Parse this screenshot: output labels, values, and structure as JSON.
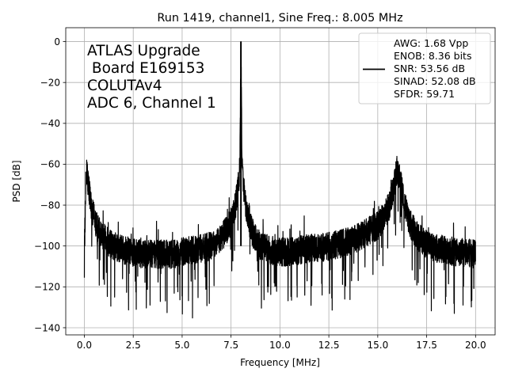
{
  "chart_data": {
    "type": "line",
    "title": "Run 1419, channel1, Sine Freq.: 8.005 MHz",
    "xlabel": "Frequency [MHz]",
    "ylabel": "PSD [dB]",
    "xlim": [
      -0.95,
      21.0
    ],
    "ylim": [
      -143.5,
      6.8
    ],
    "xticks": [
      0.0,
      2.5,
      5.0,
      7.5,
      10.0,
      12.5,
      15.0,
      17.5,
      20.0
    ],
    "xtick_labels": [
      "0.0",
      "2.5",
      "5.0",
      "7.5",
      "10.0",
      "12.5",
      "15.0",
      "17.5",
      "20.0"
    ],
    "yticks": [
      0,
      -20,
      -40,
      -60,
      -80,
      -100,
      -120,
      -140
    ],
    "ytick_labels": [
      "0",
      "−20",
      "−40",
      "−60",
      "−80",
      "−100",
      "−120",
      "−140"
    ],
    "grid": true,
    "legend_position": "top-right",
    "line_color": "#000000",
    "annotation": [
      "ATLAS Upgrade",
      " Board E169153",
      "COLUTAv4",
      "ADC 6, Channel 1"
    ],
    "legend_lines": [
      "AWG: 1.68 Vpp",
      "ENOB: 8.36 bits",
      "SNR: 53.56 dB",
      "SINAD: 52.08 dB",
      "SFDR: 59.71"
    ],
    "series": [
      {
        "x": [
          0.0,
          0.1,
          0.2,
          0.4,
          0.7,
          1.0,
          1.5,
          2.0,
          2.5,
          3.0,
          3.5,
          4.0,
          4.5,
          5.0,
          5.5,
          6.0,
          6.5,
          7.0,
          7.3,
          7.6,
          7.8,
          7.95,
          8.005,
          8.06,
          8.2,
          8.4,
          8.7,
          9.0,
          9.5,
          10.0,
          10.5,
          11.0,
          11.5,
          12.0,
          12.5,
          13.0,
          13.5,
          14.0,
          14.5,
          15.0,
          15.3,
          15.6,
          15.8,
          15.95,
          16.0,
          16.1,
          16.3,
          16.6,
          17.0,
          17.5,
          18.0,
          18.5,
          19.0,
          19.5,
          20.0
        ],
        "y": [
          -104,
          -62,
          -70,
          -83,
          -92,
          -96,
          -100,
          -102,
          -103,
          -104,
          -104,
          -104,
          -104,
          -103,
          -102,
          -101,
          -100,
          -96,
          -92,
          -86,
          -76,
          -62,
          0,
          -62,
          -77,
          -88,
          -96,
          -100,
          -102,
          -103,
          -103,
          -102,
          -101,
          -101,
          -100,
          -99,
          -98,
          -96,
          -93,
          -90,
          -86,
          -80,
          -72,
          -64,
          -62,
          -66,
          -76,
          -88,
          -95,
          -99,
          -101,
          -102,
          -103,
          -103,
          -104
        ]
      }
    ]
  }
}
